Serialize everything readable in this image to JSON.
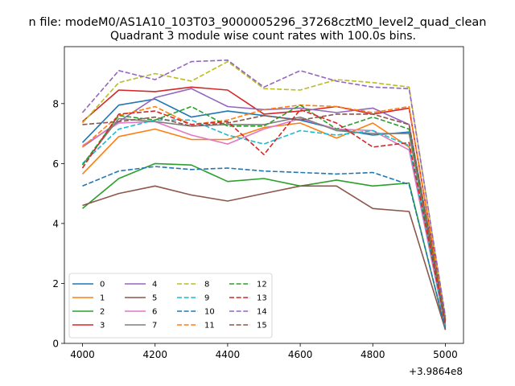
{
  "figure": {
    "suptitle": "n file: modeM0/AS1A10_103T03_9000005296_37268cztM0_level2_quad_clean",
    "background": "#ffffff"
  },
  "chart_data": {
    "type": "line",
    "title": "Quadrant 3 module wise count rates with 100.0s bins.",
    "xlabel": "",
    "ylabel": "",
    "x_offset_label": "+3.9864e8",
    "x": [
      4000,
      4100,
      4200,
      4300,
      4400,
      4500,
      4600,
      4700,
      4800,
      4900,
      5000
    ],
    "xlim": [
      3950,
      5050
    ],
    "ylim": [
      0,
      9.9
    ],
    "xticks": [
      4000,
      4200,
      4400,
      4600,
      4800,
      5000
    ],
    "yticks": [
      0,
      2,
      4,
      6,
      8
    ],
    "grid": false,
    "legend": {
      "placement": "lower-left",
      "columns": 4
    },
    "series": [
      {
        "name": "0",
        "color": "#1f77b4",
        "dash": "solid",
        "values": [
          6.7,
          7.95,
          8.15,
          7.55,
          7.75,
          7.6,
          7.45,
          7.15,
          6.95,
          7.05,
          0.6
        ]
      },
      {
        "name": "1",
        "color": "#ff7f0e",
        "dash": "solid",
        "values": [
          5.65,
          6.9,
          7.15,
          6.8,
          6.8,
          7.2,
          7.35,
          6.85,
          7.35,
          6.55,
          0.55
        ]
      },
      {
        "name": "2",
        "color": "#2ca02c",
        "dash": "solid",
        "values": [
          4.5,
          5.5,
          6.0,
          5.95,
          5.4,
          5.5,
          5.25,
          5.45,
          5.25,
          5.35,
          0.45
        ]
      },
      {
        "name": "3",
        "color": "#d62728",
        "dash": "solid",
        "values": [
          7.4,
          8.45,
          8.4,
          8.55,
          8.45,
          7.65,
          7.75,
          7.9,
          7.65,
          7.85,
          0.8
        ]
      },
      {
        "name": "4",
        "color": "#9467bd",
        "dash": "solid",
        "values": [
          6.55,
          7.4,
          8.2,
          8.5,
          7.9,
          7.8,
          7.85,
          7.7,
          7.85,
          7.3,
          0.75
        ]
      },
      {
        "name": "5",
        "color": "#8c564b",
        "dash": "solid",
        "values": [
          4.6,
          5.0,
          5.25,
          4.95,
          4.75,
          5.0,
          5.25,
          5.25,
          4.5,
          4.4,
          0.45
        ]
      },
      {
        "name": "6",
        "color": "#e377c2",
        "dash": "solid",
        "values": [
          6.6,
          7.35,
          7.4,
          6.95,
          6.65,
          7.15,
          7.5,
          7.15,
          7.1,
          6.45,
          0.55
        ]
      },
      {
        "name": "7",
        "color": "#7f7f7f",
        "dash": "solid",
        "values": [
          5.95,
          7.5,
          7.4,
          7.25,
          7.3,
          7.3,
          7.55,
          7.1,
          7.0,
          7.0,
          0.6
        ]
      },
      {
        "name": "8",
        "color": "#bcbd22",
        "dash": "dashed",
        "values": [
          7.35,
          8.7,
          9.0,
          8.75,
          9.4,
          8.5,
          8.45,
          8.8,
          8.7,
          8.55,
          0.85
        ]
      },
      {
        "name": "9",
        "color": "#17becf",
        "dash": "dashed",
        "values": [
          6.0,
          7.15,
          7.45,
          7.45,
          6.95,
          6.65,
          7.1,
          6.95,
          7.1,
          6.6,
          0.6
        ]
      },
      {
        "name": "10",
        "color": "#1f77b4",
        "dash": "dashed",
        "values": [
          5.25,
          5.75,
          5.9,
          5.8,
          5.85,
          5.75,
          5.7,
          5.65,
          5.7,
          5.3,
          0.5
        ]
      },
      {
        "name": "11",
        "color": "#ff7f0e",
        "dash": "dashed",
        "values": [
          6.55,
          7.6,
          7.9,
          7.3,
          7.45,
          7.8,
          7.95,
          7.9,
          7.7,
          7.9,
          0.7
        ]
      },
      {
        "name": "12",
        "color": "#2ca02c",
        "dash": "dashed",
        "values": [
          5.95,
          7.6,
          7.45,
          7.9,
          7.25,
          7.25,
          7.95,
          7.15,
          7.55,
          7.15,
          0.7
        ]
      },
      {
        "name": "13",
        "color": "#d62728",
        "dash": "dashed",
        "values": [
          5.85,
          7.65,
          7.75,
          7.3,
          7.4,
          6.3,
          7.8,
          7.35,
          6.55,
          6.7,
          0.65
        ]
      },
      {
        "name": "14",
        "color": "#9467bd",
        "dash": "dashed",
        "values": [
          7.7,
          9.1,
          8.8,
          9.4,
          9.45,
          8.55,
          9.1,
          8.75,
          8.55,
          8.5,
          0.9
        ]
      },
      {
        "name": "15",
        "color": "#8c564b",
        "dash": "dashed",
        "values": [
          7.3,
          7.4,
          7.55,
          7.25,
          7.35,
          7.6,
          7.45,
          7.65,
          7.65,
          7.3,
          0.75
        ]
      }
    ]
  }
}
